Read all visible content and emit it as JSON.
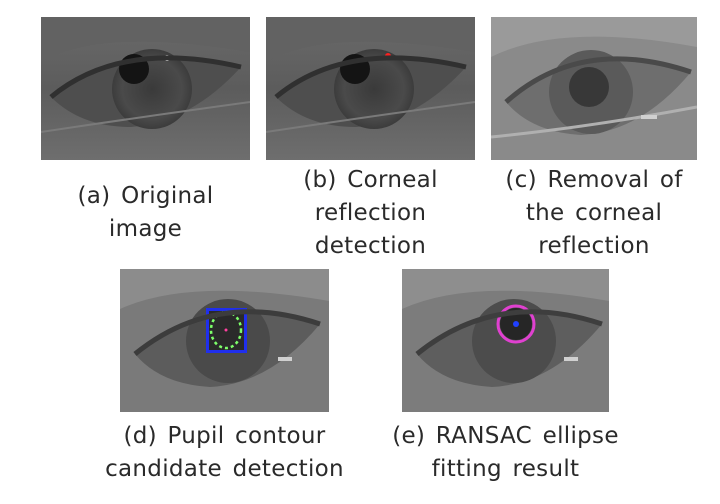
{
  "figure": {
    "panels": [
      {
        "id": "a",
        "caption_lines": [
          "(a) Original",
          "image"
        ]
      },
      {
        "id": "b",
        "caption_lines": [
          "(b) Corneal",
          "reflection",
          "detection"
        ]
      },
      {
        "id": "c",
        "caption_lines": [
          "(c) Removal of",
          "the corneal",
          "reflection"
        ]
      },
      {
        "id": "d",
        "caption_lines": [
          "(d) Pupil contour",
          "candidate detection"
        ]
      },
      {
        "id": "e",
        "caption_lines": [
          "(e) RANSAC ellipse",
          "fitting result"
        ]
      }
    ],
    "colors": {
      "corneal_marker": "#ff2020",
      "contour_points": "#7dff6a",
      "bounding_box": "#1c2cff",
      "ellipse": "#e040d0",
      "pupil_center": "#2040ff"
    }
  }
}
